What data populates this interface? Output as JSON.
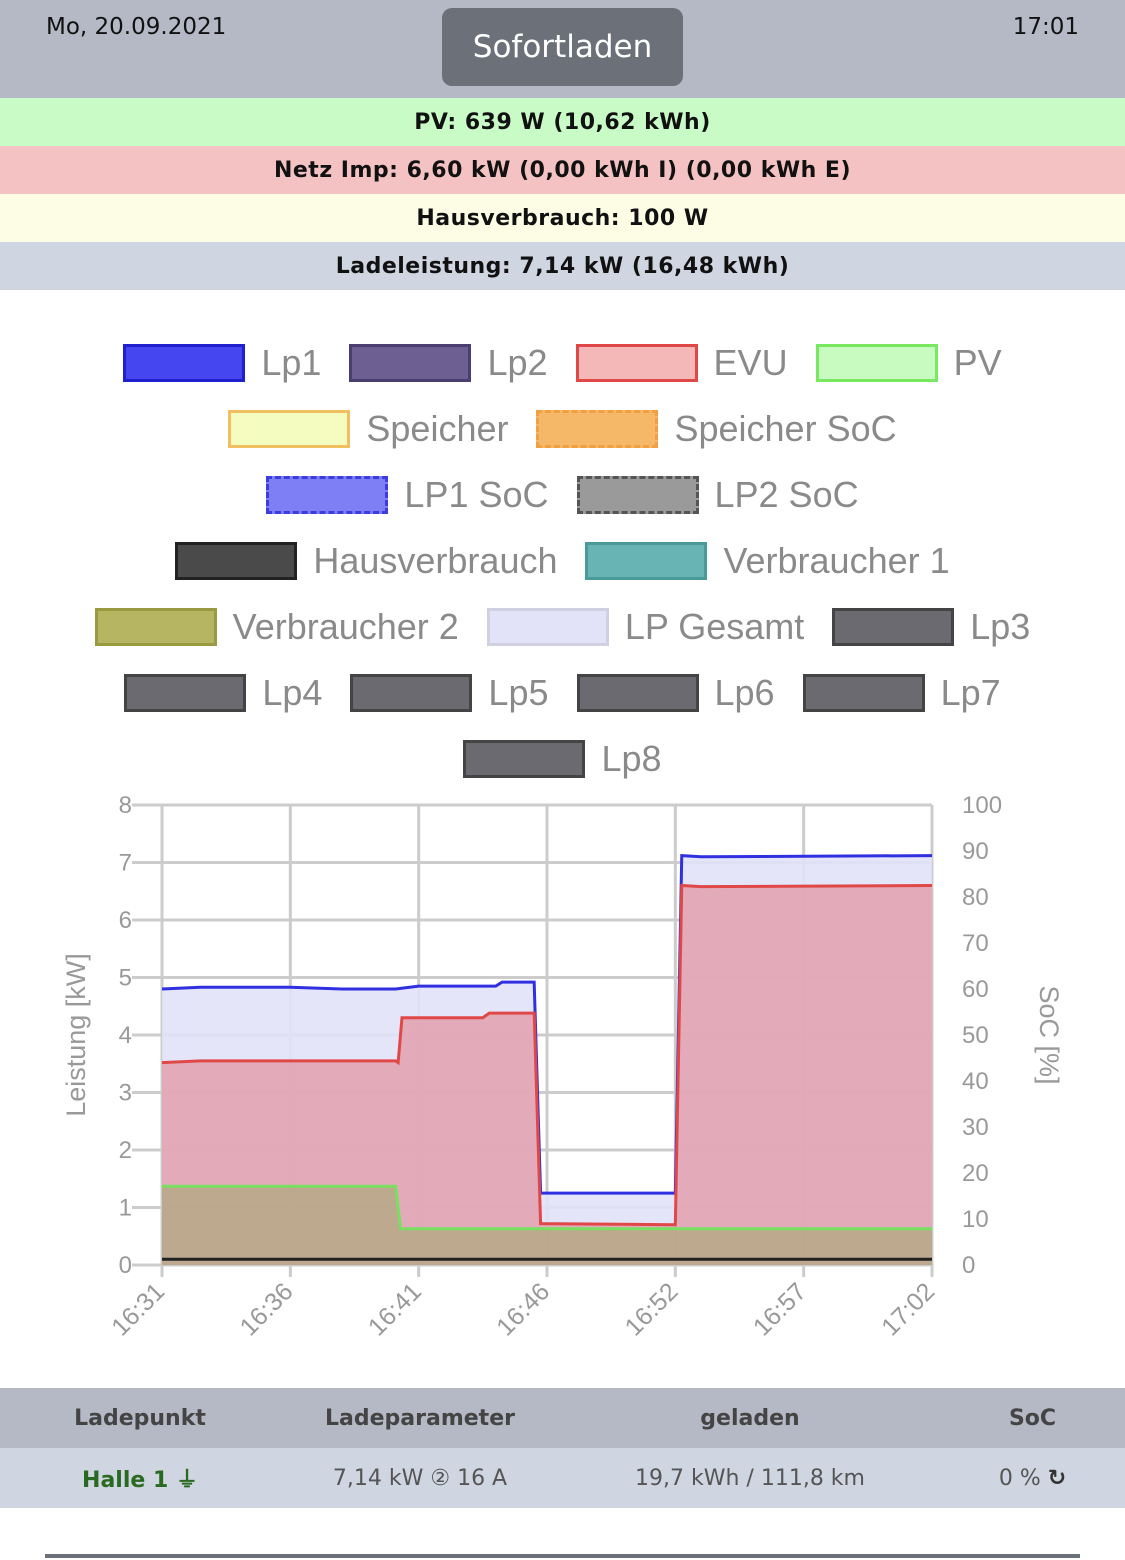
{
  "header": {
    "date": "Mo, 20.09.2021",
    "time": "17:01",
    "mode_button": "Sofortladen"
  },
  "status": {
    "pv": "PV: 639 W (10,62 kWh)",
    "netz": "Netz Imp: 6,60 kW (0,00 kWh I) (0,00 kWh E)",
    "haus": "Hausverbrauch: 100 W",
    "lade": "Ladeleistung: 7,14 kW (16,48 kWh)"
  },
  "colors": {
    "pv": "#c9fbc6",
    "netz": "#f4c2c2",
    "haus": "#fcfde4",
    "lade": "#d0d5e2"
  },
  "legend": [
    [
      {
        "label": "Lp1",
        "fill": "#4646f0",
        "border": "#2020d0"
      },
      {
        "label": "Lp2",
        "fill": "#6e5f92",
        "border": "#4a3f70"
      },
      {
        "label": "EVU",
        "fill": "#f4b8b8",
        "border": "#e04848"
      },
      {
        "label": "PV",
        "fill": "#c8fbc0",
        "border": "#78e860"
      }
    ],
    [
      {
        "label": "Speicher",
        "fill": "#f4fcc0",
        "border": "#f0c060"
      },
      {
        "label": "Speicher SoC",
        "fill": "#f4b868",
        "border": "#f0a040",
        "dashed": true
      }
    ],
    [
      {
        "label": "LP1 SoC",
        "fill": "#7f7ff5",
        "border": "#3c3ce0",
        "dashed": true
      },
      {
        "label": "LP2 SoC",
        "fill": "#9a9a9a",
        "border": "#555",
        "dashed": true
      }
    ],
    [
      {
        "label": "Hausverbrauch",
        "fill": "#4a4a4a",
        "border": "#222"
      },
      {
        "label": "Verbraucher 1",
        "fill": "#68b4b4",
        "border": "#4a9a9a"
      }
    ],
    [
      {
        "label": "Verbraucher 2",
        "fill": "#b5b562",
        "border": "#9a9a40"
      },
      {
        "label": "LP Gesamt",
        "fill": "#e2e2f8",
        "border": "#d0d0e0"
      },
      {
        "label": "Lp3",
        "fill": "#6a6a70",
        "border": "#444"
      }
    ],
    [
      {
        "label": "Lp4",
        "fill": "#6a6a70",
        "border": "#444"
      },
      {
        "label": "Lp5",
        "fill": "#6a6a70",
        "border": "#444"
      },
      {
        "label": "Lp6",
        "fill": "#6a6a70",
        "border": "#444"
      },
      {
        "label": "Lp7",
        "fill": "#6a6a70",
        "border": "#444"
      }
    ],
    [
      {
        "label": "Lp8",
        "fill": "#6a6a70",
        "border": "#444"
      }
    ]
  ],
  "chart_data": {
    "type": "area",
    "ylabel": "Leistung [kW]",
    "y2label": "SoC [%]",
    "ylim": [
      0,
      8
    ],
    "y2lim": [
      0,
      100
    ],
    "yticks": [
      "0",
      "1",
      "2",
      "3",
      "4",
      "5",
      "6",
      "7",
      "8"
    ],
    "y2ticks": [
      "0",
      "10",
      "20",
      "30",
      "40",
      "50",
      "60",
      "70",
      "80",
      "90",
      "100"
    ],
    "xticks": [
      "16:31",
      "16:36",
      "16:41",
      "16:46",
      "16:52",
      "16:57",
      "17:02"
    ],
    "series": [
      {
        "name": "LP Gesamt",
        "color": "#3030e0",
        "fill": "#e2e2f8",
        "points": [
          [
            0,
            4.8
          ],
          [
            0.3,
            4.83
          ],
          [
            1,
            4.83
          ],
          [
            1.4,
            4.8
          ],
          [
            1.82,
            4.8
          ],
          [
            2.0,
            4.85
          ],
          [
            2.6,
            4.85
          ],
          [
            2.65,
            4.92
          ],
          [
            2.9,
            4.92
          ],
          [
            2.95,
            1.25
          ],
          [
            4.0,
            1.25
          ],
          [
            4.05,
            7.12
          ],
          [
            4.2,
            7.1
          ],
          [
            6,
            7.12
          ]
        ]
      },
      {
        "name": "EVU",
        "color": "#e04848",
        "fill": "#e2a4b2",
        "points": [
          [
            0,
            3.52
          ],
          [
            0.3,
            3.55
          ],
          [
            1.82,
            3.55
          ],
          [
            1.84,
            3.52
          ],
          [
            1.87,
            4.3
          ],
          [
            2.5,
            4.3
          ],
          [
            2.55,
            4.38
          ],
          [
            2.9,
            4.38
          ],
          [
            2.95,
            0.72
          ],
          [
            4.0,
            0.7
          ],
          [
            4.05,
            6.6
          ],
          [
            4.2,
            6.58
          ],
          [
            6,
            6.6
          ]
        ]
      },
      {
        "name": "PV",
        "color": "#78e060",
        "fill": "#b8a888",
        "points": [
          [
            0,
            1.37
          ],
          [
            1.82,
            1.37
          ],
          [
            1.86,
            0.63
          ],
          [
            6,
            0.63
          ]
        ]
      },
      {
        "name": "Hausverbrauch",
        "color": "#222",
        "points": [
          [
            0,
            0.1
          ],
          [
            6,
            0.1
          ]
        ]
      }
    ]
  },
  "table": {
    "headers": [
      "Ladepunkt",
      "Ladeparameter",
      "geladen",
      "SoC"
    ],
    "rows": [
      {
        "name": "Halle 1",
        "param": "7,14 kW ② 16 A",
        "geladen": "19,7 kWh / 111,8 km",
        "soc": "0 %"
      }
    ]
  }
}
